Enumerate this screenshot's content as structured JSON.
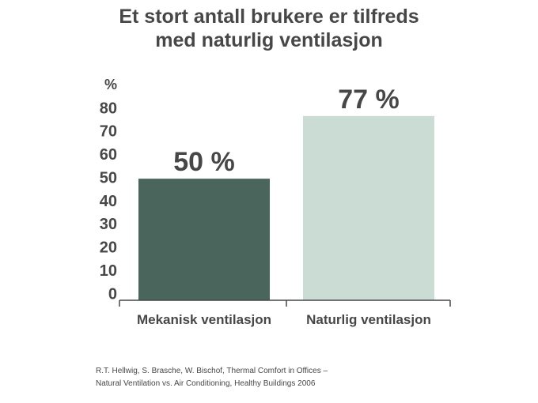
{
  "title_lines": [
    "Et stort antall brukere er tilfreds",
    "med naturlig ventilasjon"
  ],
  "chart_data": {
    "type": "bar",
    "title": "Et stort antall brukere er tilfreds med naturlig ventilasjon",
    "ylabel": "%",
    "xlabel": "",
    "categories": [
      "Mekanisk ventilasjon",
      "Naturlig ventilasjon"
    ],
    "values": [
      50,
      77
    ],
    "value_labels": [
      "50 %",
      "77 %"
    ],
    "bar_colors": [
      "#4a665c",
      "#cbdcd5"
    ],
    "ylim": [
      0,
      80
    ],
    "yticks": [
      0,
      10,
      20,
      30,
      40,
      50,
      60,
      70,
      80
    ],
    "grid": false,
    "legend": "none"
  },
  "source_lines": [
    "R.T. Hellwig, S. Brasche, W. Bischof, Thermal Comfort in Offices –",
    "Natural Ventilation vs. Air Conditioning, Healthy Buildings 2006"
  ],
  "colors": {
    "text": "#474747",
    "axis": "#474747"
  }
}
